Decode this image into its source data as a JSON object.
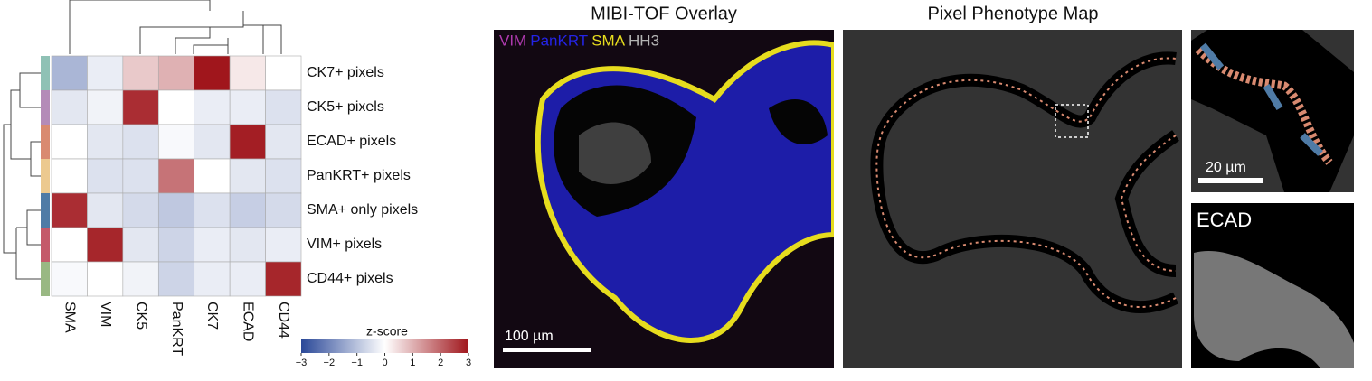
{
  "chart_data": {
    "type": "heatmap",
    "rows": [
      "CK7+ pixels",
      "CK5+ pixels",
      "ECAD+ pixels",
      "PanKRT+ pixels",
      "SMA+ only pixels",
      "VIM+ pixels",
      "CD44+ pixels"
    ],
    "row_colors": [
      "#8fc1b5",
      "#b48bb8",
      "#d98a70",
      "#ecc98f",
      "#4f7ba6",
      "#c45a6a",
      "#99b883"
    ],
    "columns": [
      "SMA",
      "VIM",
      "CK5",
      "PanKRT",
      "CK7",
      "ECAD",
      "CD44"
    ],
    "values": [
      [
        -1.2,
        -0.3,
        0.7,
        1.0,
        3.0,
        0.3,
        0.0
      ],
      [
        -0.4,
        -0.2,
        2.7,
        0.0,
        -0.3,
        -0.3,
        -0.5
      ],
      [
        0.0,
        -0.4,
        -0.5,
        -0.1,
        -0.4,
        2.9,
        -0.4
      ],
      [
        0.0,
        -0.5,
        -0.5,
        1.8,
        0.0,
        -0.4,
        -0.5
      ],
      [
        2.7,
        -0.4,
        -0.6,
        -0.9,
        -0.5,
        -0.8,
        -0.6
      ],
      [
        0.0,
        2.8,
        -0.4,
        -0.7,
        -0.3,
        -0.4,
        -0.3
      ],
      [
        -0.1,
        0.0,
        -0.2,
        -0.7,
        -0.3,
        -0.3,
        2.8
      ]
    ],
    "colormap": [
      "#2a4898",
      "#ffffff",
      "#a0161c"
    ],
    "colorbar_label": "z-score",
    "clim": [
      -3,
      3
    ],
    "cticks": [
      {
        "value": -3,
        "label": "−3"
      },
      {
        "value": -2,
        "label": "−2"
      },
      {
        "value": -1,
        "label": "−1"
      },
      0,
      1,
      2,
      3
    ]
  },
  "images": {
    "overlay": {
      "title": "MIBI-TOF Overlay",
      "channels": [
        {
          "name": "VIM",
          "color": "#b03ab0"
        },
        {
          "name": "PanKRT",
          "color": "#2424e6"
        },
        {
          "name": "SMA",
          "color": "#e6dc1e"
        },
        {
          "name": "HH3",
          "color": "#b4b4b4"
        }
      ],
      "scale_bar": "100 µm"
    },
    "phenotype": {
      "title": "Pixel Phenotype Map",
      "inset_scale_bar": "20 µm",
      "ecad_label": "ECAD"
    }
  }
}
